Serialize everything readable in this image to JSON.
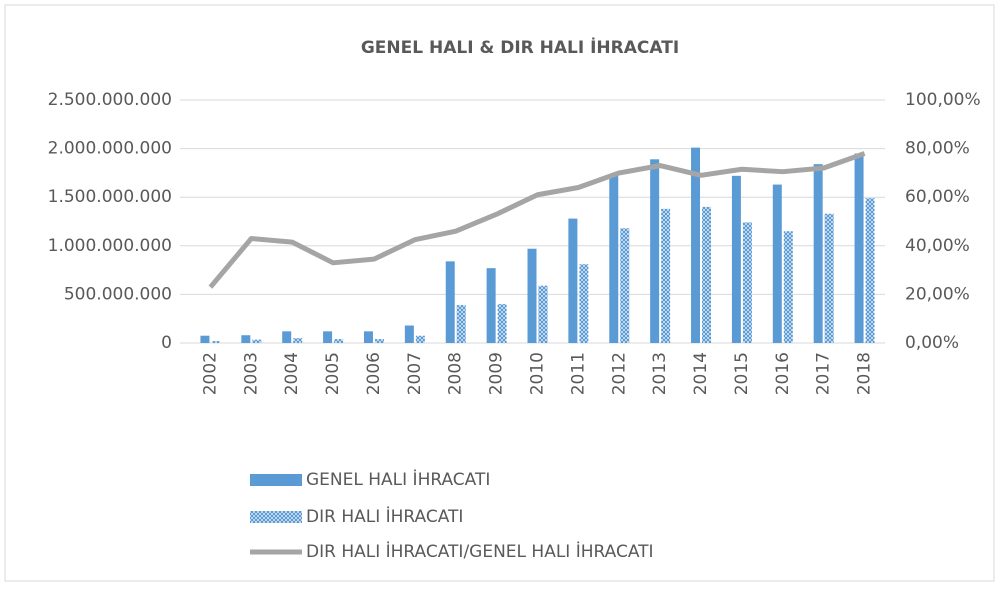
{
  "chart_data": {
    "type": "bar",
    "title": "GENEL HALI & DIR HALI İHRACATI",
    "categories": [
      "2002",
      "2003",
      "2004",
      "2005",
      "2006",
      "2007",
      "2008",
      "2009",
      "2010",
      "2011",
      "2012",
      "2013",
      "2014",
      "2015",
      "2016",
      "2017",
      "2018"
    ],
    "series": [
      {
        "name": "GENEL HALI İHRACATI",
        "color": "#5b9bd5",
        "values": [
          75000000,
          80000000,
          120000000,
          120000000,
          120000000,
          180000000,
          840000000,
          770000000,
          970000000,
          1280000000,
          1730000000,
          1890000000,
          2010000000,
          1720000000,
          1630000000,
          1840000000,
          1950000000
        ]
      },
      {
        "name": "DIR HALI İHRACATI",
        "color": "#5b9bd5",
        "pattern": "crosshatch",
        "values": [
          20000000,
          35000000,
          50000000,
          40000000,
          40000000,
          75000000,
          390000000,
          400000000,
          590000000,
          810000000,
          1180000000,
          1380000000,
          1400000000,
          1240000000,
          1150000000,
          1330000000,
          1490000000
        ]
      },
      {
        "name": "DIR HALI İHRACATI/GENEL HALI İHRACATI",
        "color": "#a5a5a5",
        "type": "line",
        "axis": "y2",
        "values": [
          23,
          43,
          41.5,
          33,
          34.5,
          42.5,
          46,
          53,
          61,
          64,
          70,
          73,
          69,
          71.5,
          70.5,
          72,
          78
        ]
      }
    ],
    "ylim": [
      0,
      2500000000
    ],
    "yticks": [
      0,
      {
        "value": 500000000,
        "label": "500.000.000"
      },
      {
        "value": 1000000000,
        "label": "1.000.000.000"
      },
      {
        "value": 1500000000,
        "label": "1.500.000.000"
      },
      {
        "value": 2000000000,
        "label": "2.000.000.000"
      },
      {
        "value": 2500000000,
        "label": "2.500.000.000"
      }
    ],
    "y2lim": [
      0,
      100
    ],
    "y2ticks": [
      {
        "value": 0,
        "label": "0,00%"
      },
      {
        "value": 20,
        "label": "20,00%"
      },
      {
        "value": 40,
        "label": "40,00%"
      },
      {
        "value": 60,
        "label": "60,00%"
      },
      {
        "value": 80,
        "label": "80,00%"
      },
      {
        "value": 100,
        "label": "100,00%"
      }
    ],
    "grid": true,
    "legend": "bottom"
  }
}
